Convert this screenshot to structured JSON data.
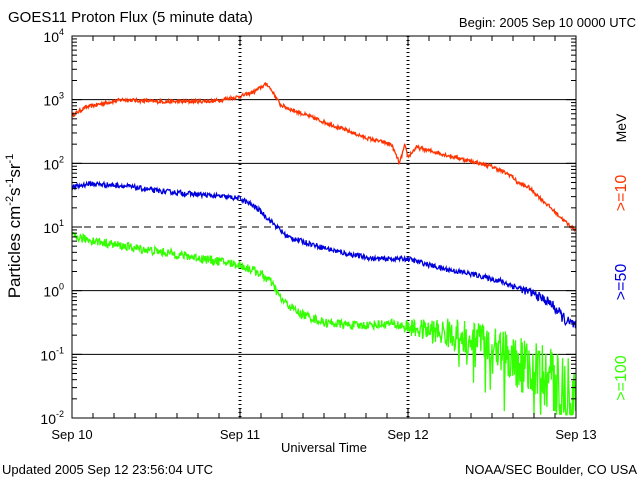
{
  "chart_data": {
    "type": "line",
    "title": "GOES11 Proton Flux (5 minute data)",
    "begin_label": "Begin: 2005 Sep 10 0000 UTC",
    "xlabel": "Universal Time",
    "ylabel": {
      "base": "Particles cm",
      "exp1": "-2",
      "mid1": "s",
      "exp2": "-1",
      "mid2": "sr",
      "exp3": "-1"
    },
    "x_ticks": [
      "Sep 10",
      "Sep 11",
      "Sep 12",
      "Sep 13"
    ],
    "x_range_days": [
      0,
      3
    ],
    "y_scale": "log",
    "y_range_log10": [
      -2,
      4
    ],
    "y_ticks": [
      {
        "base": "10",
        "exp": "4",
        "log": 4
      },
      {
        "base": "10",
        "exp": "3",
        "log": 3
      },
      {
        "base": "10",
        "exp": "2",
        "log": 2
      },
      {
        "base": "10",
        "exp": "1",
        "log": 1
      },
      {
        "base": "10",
        "exp": "0",
        "log": 0
      },
      {
        "base": "10",
        "exp": "-1",
        "log": -1
      },
      {
        "base": "10",
        "exp": "-2",
        "log": -2
      }
    ],
    "threshold_lines_log10": [
      3,
      2,
      1,
      0,
      -1
    ],
    "unit_label": "MeV",
    "series": [
      {
        "name": ">=10",
        "color": "#ff3300",
        "noise": 0.03,
        "points": [
          [
            0,
            2.75
          ],
          [
            0.08,
            2.88
          ],
          [
            0.2,
            2.95
          ],
          [
            0.3,
            3.0
          ],
          [
            0.5,
            2.97
          ],
          [
            0.7,
            2.97
          ],
          [
            0.85,
            2.98
          ],
          [
            1.0,
            3.05
          ],
          [
            1.08,
            3.12
          ],
          [
            1.16,
            3.25
          ],
          [
            1.2,
            3.1
          ],
          [
            1.24,
            2.92
          ],
          [
            1.3,
            2.85
          ],
          [
            1.45,
            2.7
          ],
          [
            1.6,
            2.55
          ],
          [
            1.75,
            2.4
          ],
          [
            1.9,
            2.3
          ],
          [
            1.95,
            2.0
          ],
          [
            1.98,
            2.28
          ],
          [
            2.0,
            2.1
          ],
          [
            2.05,
            2.25
          ],
          [
            2.2,
            2.15
          ],
          [
            2.35,
            2.05
          ],
          [
            2.5,
            1.95
          ],
          [
            2.62,
            1.8
          ],
          [
            2.65,
            1.7
          ],
          [
            2.72,
            1.62
          ],
          [
            2.85,
            1.3
          ],
          [
            2.95,
            1.05
          ],
          [
            3.0,
            0.95
          ]
        ]
      },
      {
        "name": ">=50",
        "color": "#0000dd",
        "noise": 0.04,
        "points": [
          [
            0,
            1.62
          ],
          [
            0.1,
            1.68
          ],
          [
            0.3,
            1.65
          ],
          [
            0.5,
            1.57
          ],
          [
            0.8,
            1.5
          ],
          [
            1.0,
            1.45
          ],
          [
            1.1,
            1.3
          ],
          [
            1.2,
            1.05
          ],
          [
            1.28,
            0.85
          ],
          [
            1.4,
            0.75
          ],
          [
            1.6,
            0.6
          ],
          [
            1.8,
            0.5
          ],
          [
            2.0,
            0.5
          ],
          [
            2.2,
            0.35
          ],
          [
            2.4,
            0.25
          ],
          [
            2.55,
            0.15
          ],
          [
            2.75,
            -0.05
          ],
          [
            2.85,
            -0.2
          ],
          [
            2.95,
            -0.5
          ],
          [
            3.0,
            -0.55
          ]
        ]
      },
      {
        "name": ">=100",
        "color": "#33ff00",
        "noise": 0.07,
        "points": [
          [
            0,
            0.85
          ],
          [
            0.1,
            0.8
          ],
          [
            0.3,
            0.7
          ],
          [
            0.6,
            0.58
          ],
          [
            0.9,
            0.45
          ],
          [
            1.0,
            0.4
          ],
          [
            1.1,
            0.3
          ],
          [
            1.18,
            0.15
          ],
          [
            1.25,
            -0.15
          ],
          [
            1.35,
            -0.35
          ],
          [
            1.5,
            -0.5
          ],
          [
            1.7,
            -0.55
          ],
          [
            1.9,
            -0.52
          ],
          [
            2.05,
            -0.6
          ],
          [
            2.3,
            -0.7
          ],
          [
            2.5,
            -0.8
          ],
          [
            2.65,
            -1.1
          ],
          [
            2.8,
            -1.35
          ],
          [
            2.95,
            -1.6
          ],
          [
            3.0,
            -1.7
          ]
        ]
      }
    ]
  },
  "footer": {
    "updated": "Updated 2005 Sep 12 23:56:04 UTC",
    "credit": "NOAA/SEC Boulder, CO USA"
  }
}
